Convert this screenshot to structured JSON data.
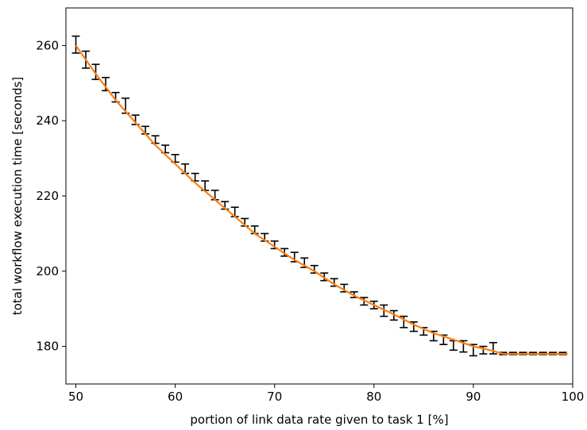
{
  "chart_data": {
    "type": "line",
    "xlabel": "portion of link data rate given to task 1 [%]",
    "ylabel": "total workflow execution time [seconds]",
    "xlim": [
      49,
      100
    ],
    "ylim": [
      170,
      270
    ],
    "xticks": [
      50,
      60,
      70,
      80,
      90,
      100
    ],
    "yticks": [
      180,
      200,
      220,
      240,
      260
    ],
    "grid": false,
    "colors": {
      "fit": "#ff7f0e",
      "measured": "#000000"
    },
    "series": [
      {
        "type": "errorbar",
        "x": [
          50,
          51,
          52,
          53,
          54,
          55,
          56,
          57,
          58,
          59,
          60,
          61,
          62,
          63,
          64,
          65,
          66,
          67,
          68,
          69,
          70,
          71,
          72,
          73,
          74,
          75,
          76,
          77,
          78,
          79,
          80,
          81,
          82,
          83,
          84,
          85,
          86,
          87,
          88,
          89,
          90,
          91,
          92,
          93,
          94,
          95,
          96,
          97,
          98,
          99
        ],
        "low": [
          258.0,
          254.0,
          251.0,
          248.0,
          245.0,
          242.0,
          239.0,
          236.5,
          234.0,
          231.5,
          229.0,
          226.0,
          224.0,
          221.5,
          219.0,
          216.5,
          214.5,
          212.0,
          210.0,
          208.0,
          206.0,
          204.0,
          202.5,
          201.0,
          199.5,
          197.5,
          196.0,
          194.5,
          193.0,
          191.0,
          190.0,
          188.0,
          187.0,
          185.0,
          184.0,
          183.0,
          181.5,
          180.5,
          179.0,
          178.5,
          177.5,
          178.0,
          178.0,
          177.8,
          177.8,
          177.8,
          177.8,
          177.8,
          177.8,
          177.8
        ],
        "high": [
          262.5,
          258.5,
          255.0,
          251.5,
          247.5,
          246.0,
          241.5,
          238.5,
          236.0,
          233.5,
          231.0,
          228.5,
          226.0,
          224.0,
          221.5,
          218.5,
          217.0,
          214.0,
          212.0,
          210.0,
          208.0,
          206.0,
          205.0,
          203.5,
          201.5,
          199.5,
          198.0,
          196.5,
          194.5,
          193.0,
          192.0,
          191.0,
          189.5,
          188.0,
          186.5,
          185.0,
          184.0,
          183.0,
          181.5,
          181.5,
          180.5,
          180.0,
          181.0,
          178.4,
          178.4,
          178.4,
          178.4,
          178.4,
          178.4,
          178.4
        ]
      },
      {
        "type": "line",
        "x": [
          50,
          52,
          54,
          56,
          58,
          60,
          62,
          64,
          66,
          68,
          70,
          72,
          74,
          76,
          78,
          80,
          82,
          84,
          86,
          88,
          90,
          92,
          93,
          94,
          96,
          98,
          99.5
        ],
        "y": [
          260.0,
          252.5,
          245.5,
          239.5,
          233.5,
          228.5,
          223.5,
          219.0,
          214.5,
          210.0,
          206.5,
          203.0,
          200.0,
          196.5,
          193.5,
          191.0,
          188.5,
          185.8,
          183.5,
          181.8,
          180.0,
          178.8,
          178.0,
          178.0,
          178.0,
          178.0,
          178.0
        ]
      }
    ]
  }
}
